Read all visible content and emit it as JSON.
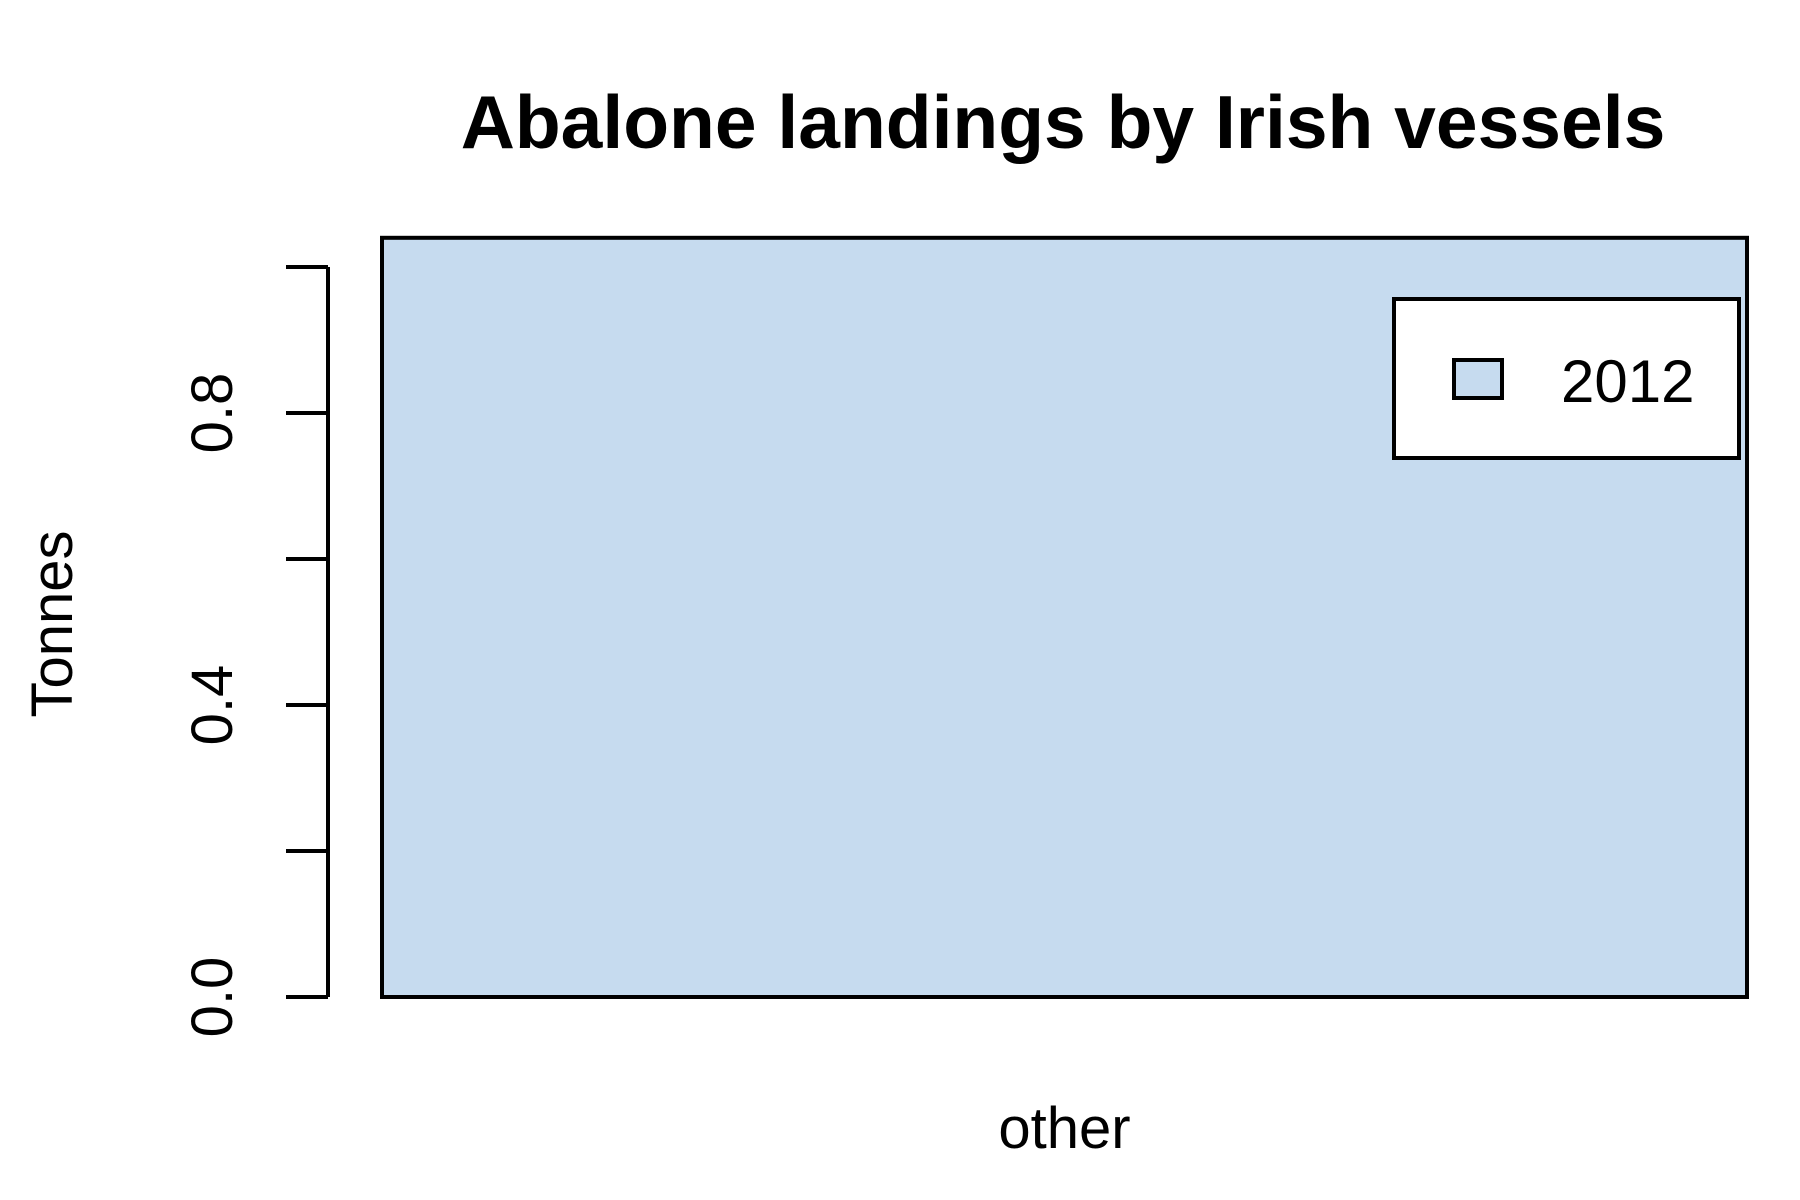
{
  "chart_data": {
    "type": "bar",
    "title": "Abalone landings by Irish vessels",
    "xlabel": "",
    "ylabel": "Tonnes",
    "categories": [
      "other"
    ],
    "series": [
      {
        "name": "2012",
        "values": [
          1.04
        ]
      }
    ],
    "ylim": [
      0,
      1.0
    ],
    "y_ticks": [
      0.0,
      0.2,
      0.4,
      0.6,
      0.8,
      1.0
    ],
    "y_tick_labels": [
      "0.0",
      "",
      "0.4",
      "",
      "0.8",
      ""
    ],
    "bar_color": "#c6dbef",
    "grid": false,
    "legend_position": "top-right"
  }
}
